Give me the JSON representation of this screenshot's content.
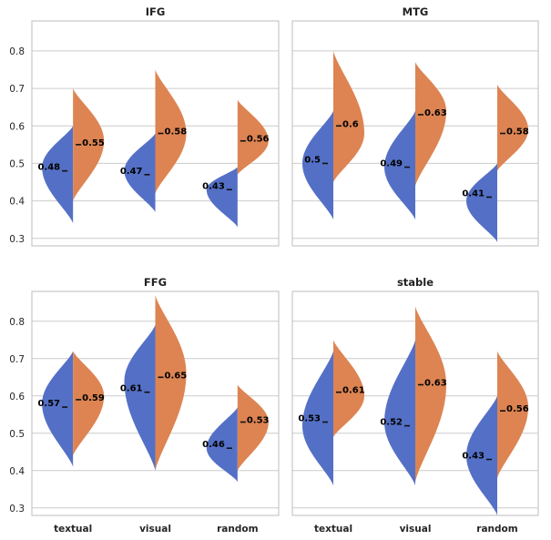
{
  "chart_data": [
    {
      "type": "violin",
      "title": "IFG",
      "categories": [
        "textual",
        "visual",
        "random"
      ],
      "ylim": [
        0.28,
        0.88
      ],
      "yticks": [
        0.3,
        0.4,
        0.5,
        0.6,
        0.7,
        0.8
      ],
      "series": [
        {
          "name": "left",
          "color": "#5470c6",
          "means": [
            0.48,
            0.47,
            0.43
          ],
          "labels": [
            "0.48",
            "0.47",
            "0.43"
          ],
          "ranges": [
            [
              0.34,
              0.6
            ],
            [
              0.37,
              0.58
            ],
            [
              0.33,
              0.49
            ]
          ],
          "modes": [
            0.49,
            0.48,
            0.43
          ]
        },
        {
          "name": "right",
          "color": "#dd8452",
          "means": [
            0.55,
            0.58,
            0.56
          ],
          "labels": [
            "0.55",
            "0.58",
            "0.56"
          ],
          "ranges": [
            [
              0.4,
              0.7
            ],
            [
              0.42,
              0.75
            ],
            [
              0.47,
              0.67
            ]
          ],
          "modes": [
            0.56,
            0.58,
            0.56
          ]
        }
      ]
    },
    {
      "type": "violin",
      "title": "MTG",
      "categories": [
        "textual",
        "visual",
        "random"
      ],
      "ylim": [
        0.28,
        0.88
      ],
      "yticks": [
        0.3,
        0.4,
        0.5,
        0.6,
        0.7,
        0.8
      ],
      "series": [
        {
          "name": "left",
          "color": "#5470c6",
          "means": [
            0.5,
            0.49,
            0.41
          ],
          "labels": [
            "0.5",
            "0.49",
            "0.41"
          ],
          "ranges": [
            [
              0.35,
              0.64
            ],
            [
              0.35,
              0.64
            ],
            [
              0.29,
              0.5
            ]
          ],
          "modes": [
            0.5,
            0.49,
            0.4
          ]
        },
        {
          "name": "right",
          "color": "#dd8452",
          "means": [
            0.6,
            0.63,
            0.58
          ],
          "labels": [
            "0.6",
            "0.63",
            "0.58"
          ],
          "ranges": [
            [
              0.45,
              0.8
            ],
            [
              0.44,
              0.77
            ],
            [
              0.48,
              0.71
            ]
          ],
          "modes": [
            0.58,
            0.64,
            0.59
          ]
        }
      ]
    },
    {
      "type": "violin",
      "title": "FFG",
      "categories": [
        "textual",
        "visual",
        "random"
      ],
      "ylim": [
        0.28,
        0.88
      ],
      "yticks": [
        0.3,
        0.4,
        0.5,
        0.6,
        0.7,
        0.8
      ],
      "series": [
        {
          "name": "left",
          "color": "#5470c6",
          "means": [
            0.57,
            0.61,
            0.46
          ],
          "labels": [
            "0.57",
            "0.61",
            "0.46"
          ],
          "ranges": [
            [
              0.41,
              0.72
            ],
            [
              0.4,
              0.79
            ],
            [
              0.37,
              0.57
            ]
          ],
          "modes": [
            0.58,
            0.64,
            0.46
          ]
        },
        {
          "name": "right",
          "color": "#dd8452",
          "means": [
            0.59,
            0.65,
            0.53
          ],
          "labels": [
            "0.59",
            "0.65",
            "0.53"
          ],
          "ranges": [
            [
              0.44,
              0.72
            ],
            [
              0.4,
              0.87
            ],
            [
              0.4,
              0.63
            ]
          ],
          "modes": [
            0.6,
            0.66,
            0.53
          ]
        }
      ]
    },
    {
      "type": "violin",
      "title": "stable",
      "categories": [
        "textual",
        "visual",
        "random"
      ],
      "ylim": [
        0.28,
        0.88
      ],
      "yticks": [
        0.3,
        0.4,
        0.5,
        0.6,
        0.7,
        0.8
      ],
      "series": [
        {
          "name": "left",
          "color": "#5470c6",
          "means": [
            0.53,
            0.52,
            0.43
          ],
          "labels": [
            "0.53",
            "0.52",
            "0.43"
          ],
          "ranges": [
            [
              0.36,
              0.72
            ],
            [
              0.36,
              0.75
            ],
            [
              0.28,
              0.6
            ]
          ],
          "modes": [
            0.52,
            0.53,
            0.44
          ]
        },
        {
          "name": "right",
          "color": "#dd8452",
          "means": [
            0.61,
            0.63,
            0.56
          ],
          "labels": [
            "0.61",
            "0.63",
            "0.56"
          ],
          "ranges": [
            [
              0.49,
              0.75
            ],
            [
              0.37,
              0.84
            ],
            [
              0.38,
              0.72
            ]
          ],
          "modes": [
            0.6,
            0.63,
            0.57
          ]
        }
      ]
    }
  ]
}
